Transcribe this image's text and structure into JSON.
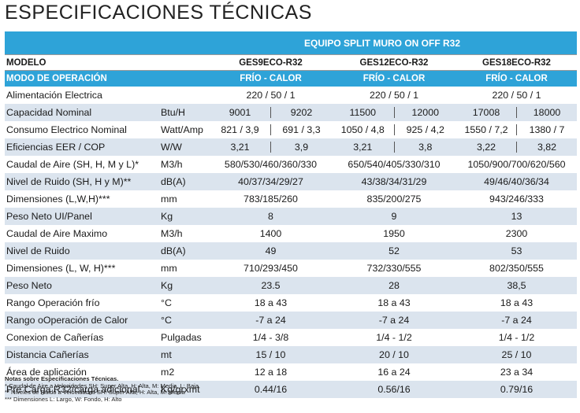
{
  "title": "ESPECIFICACIONES TÉCNICAS",
  "header": {
    "equipment": "EQUIPO SPLIT MURO ON OFF R32",
    "model_label": "MODELO",
    "models": [
      "GES9ECO-R32",
      "GES12ECO-R32",
      "GES18ECO-R32"
    ],
    "mode_label": "MODO DE OPERACIÓN",
    "modes": [
      "FRÍO - CALOR",
      "FRÍO - CALOR",
      "FRÍO - CALOR"
    ]
  },
  "rows": [
    {
      "label": "Alimentación Electrica",
      "unit": "",
      "values": [
        "220 / 50 / 1",
        "220 / 50 / 1",
        "220 / 50 / 1"
      ]
    },
    {
      "label": "Capacidad Nominal",
      "unit": "Btu/H",
      "pairs": [
        [
          "9001",
          "9202"
        ],
        [
          "11500",
          "12000"
        ],
        [
          "17008",
          "18000"
        ]
      ]
    },
    {
      "label": "Consumo Electrico Nominal",
      "unit": "Watt/Amp",
      "pairs": [
        [
          "821 / 3,9",
          "691 / 3,3"
        ],
        [
          "1050 / 4,8",
          "925 / 4,2"
        ],
        [
          "1550 / 7,2",
          "1380 / 7"
        ]
      ]
    },
    {
      "label": "Eficiencias EER / COP",
      "unit": "W/W",
      "pairs": [
        [
          "3,21",
          "3,9"
        ],
        [
          "3,21",
          "3,8"
        ],
        [
          "3,22",
          "3,82"
        ]
      ]
    },
    {
      "label": "Caudal de Aire (SH, H, M y L)*",
      "unit": "M3/h",
      "values": [
        "580/530/460/360/330",
        "650/540/405/330/310",
        "1050/900/700/620/560"
      ]
    },
    {
      "label": "Nivel de Ruido (SH, H y M)**",
      "unit": "dB(A)",
      "values": [
        "40/37/34/29/27",
        "43/38/34/31/29",
        "49/46/40/36/34"
      ]
    },
    {
      "label": "Dimensiones (L,W,H)***",
      "unit": "mm",
      "values": [
        "783/185/260",
        "835/200/275",
        "943/246/333"
      ]
    },
    {
      "label": "Peso Neto UI/Panel",
      "unit": "Kg",
      "values": [
        "8",
        "9",
        "13"
      ]
    },
    {
      "label": "Caudal de Aire Maximo",
      "unit": "M3/h",
      "values": [
        "1400",
        "1950",
        "2300"
      ]
    },
    {
      "label": "Nivel de Ruido",
      "unit": "dB(A)",
      "values": [
        "49",
        "52",
        "53"
      ]
    },
    {
      "label": "Dimensiones (L, W, H)***",
      "unit": "mm",
      "values": [
        "710/293/450",
        "732/330/555",
        "802/350/555"
      ]
    },
    {
      "label": "Peso Neto",
      "unit": "Kg",
      "values": [
        "23.5",
        "28",
        "38,5"
      ]
    },
    {
      "label": "Rango Operación frío",
      "unit": "°C",
      "values": [
        "18 a 43",
        "18 a 43",
        "18 a 43"
      ]
    },
    {
      "label": "Rango oOperación de Calor",
      "unit": "°C",
      "values": [
        "-7 a 24",
        "-7 a 24",
        "-7 a 24"
      ]
    },
    {
      "label": "Conexion de Cañerías",
      "unit": "Pulgadas",
      "values": [
        "1/4 - 3/8",
        "1/4 - 1/2",
        "1/4 - 1/2"
      ]
    },
    {
      "label": "Distancia Cañerías",
      "unit": "mt",
      "values": [
        "15 / 10",
        "20 / 10",
        "25 / 10"
      ]
    },
    {
      "label": "Área de aplicación",
      "unit": "m2",
      "values": [
        "12 a 18",
        "16 a 24",
        "23 a 34"
      ]
    },
    {
      "label": "Pre Carga R32/carga adicional",
      "unit": "Kg/grxmt",
      "values": [
        "0.44/16",
        "0.56/16",
        "0.79/16"
      ]
    }
  ],
  "notes": {
    "title": "Notas sobre Especificaciones Técnicas.",
    "lines": [
      "* Caudal de Aire a Velocidades SH: Super Alta, H: Alta, M: Media,  L: Baja",
      "** Niveles de Ruido a Velocidades SH: Super Alta, H: Alta, M: Media",
      "*** Dimensiones L: Largo, W: Fondo, H: Alto"
    ]
  }
}
